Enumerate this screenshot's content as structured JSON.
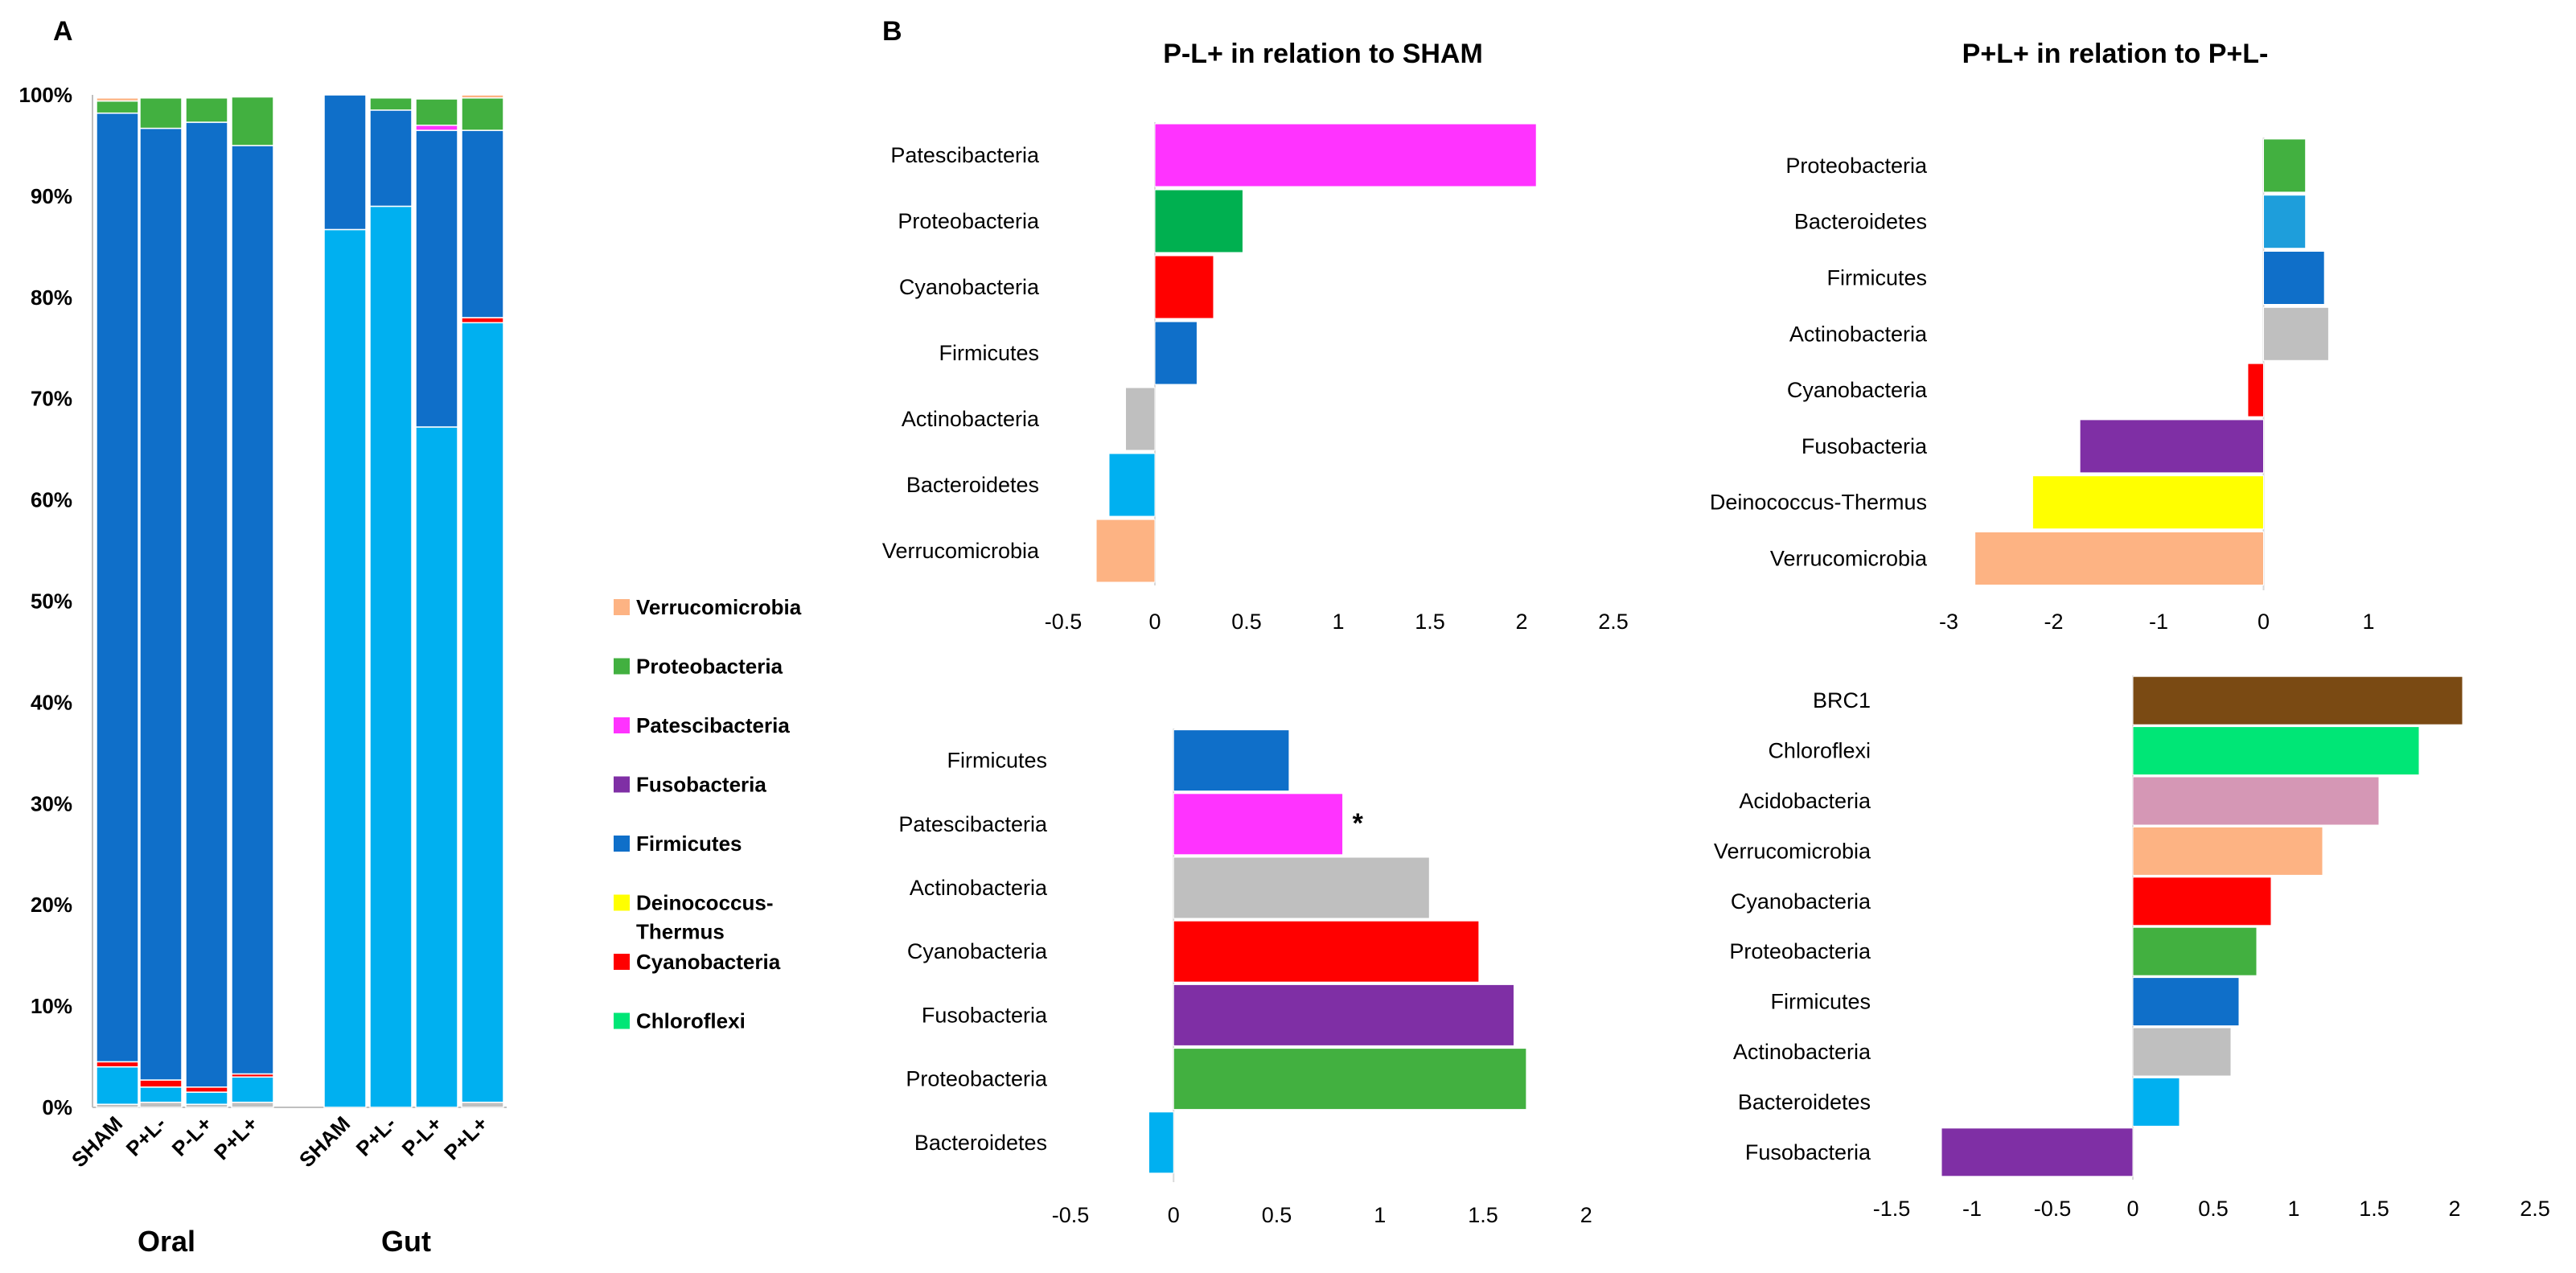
{
  "panel_labels": {
    "a": "A",
    "b": "B"
  },
  "group_labels": [
    "Oral",
    "Gut"
  ],
  "colors": {
    "Verrucomicrobia": "#FDB383",
    "Proteobacteria": "#42B040",
    "Patescibacteria": "#FF33FF",
    "Fusobacteria": "#7F2FA5",
    "Firmicutes": "#0F6FC9",
    "Deinococcus-Thermus": "#FFFF00",
    "Cyanobacteria": "#FF0000",
    "Chloroflexi": "#00E676",
    "Bacteroidetes": "#00B0F0",
    "Actinobacteria": "#BFBFBF",
    "BRC1": "#7A4A13",
    "Acidobacteria": "#D597B5",
    "ProteobacteriaDark": "#00B050",
    "BacteroidetesAlt": "#1E9EDB"
  },
  "legend": [
    {
      "label": "Verrucomicrobia",
      "color": "#FDB383"
    },
    {
      "label": "Proteobacteria",
      "color": "#42B040"
    },
    {
      "label": "Patescibacteria",
      "color": "#FF33FF"
    },
    {
      "label": "Fusobacteria",
      "color": "#7F2FA5"
    },
    {
      "label": "Firmicutes",
      "color": "#0F6FC9"
    },
    {
      "label": "Deinococcus-\nThermus",
      "color": "#FFFF00"
    },
    {
      "label": "Cyanobacteria",
      "color": "#FF0000"
    },
    {
      "label": "Chloroflexi",
      "color": "#00E676"
    }
  ],
  "chart_data": [
    {
      "id": "A",
      "type": "bar",
      "stacked": true,
      "title": "",
      "ylabel": "",
      "ylim": [
        0,
        100
      ],
      "yticks": [
        "0%",
        "10%",
        "20%",
        "30%",
        "40%",
        "50%",
        "60%",
        "70%",
        "80%",
        "90%",
        "100%"
      ],
      "categories": [
        "SHAM",
        "P+L-",
        "P-L+",
        "P+L+",
        "SHAM",
        "P+L-",
        "P-L+",
        "P+L+"
      ],
      "groups": [
        {
          "name": "Oral",
          "indices": [
            0,
            1,
            2,
            3
          ]
        },
        {
          "name": "Gut",
          "indices": [
            4,
            5,
            6,
            7
          ]
        }
      ],
      "series": [
        {
          "name": "Actinobacteria",
          "color": "#BFBFBF",
          "values": [
            0.3,
            0.5,
            0.3,
            0.5,
            0,
            0,
            0,
            0.5
          ]
        },
        {
          "name": "Bacteroidetes",
          "color": "#00B0F0",
          "values": [
            3.7,
            1.5,
            1.2,
            2.5,
            86.7,
            89,
            67.2,
            77
          ]
        },
        {
          "name": "Cyanobacteria",
          "color": "#FF0000",
          "values": [
            0.5,
            0.7,
            0.5,
            0.3,
            0,
            0,
            0,
            0.5
          ]
        },
        {
          "name": "Firmicutes",
          "color": "#0F6FC9",
          "values": [
            93.7,
            94,
            95.3,
            91.7,
            13.3,
            9.5,
            29.3,
            18.5
          ]
        },
        {
          "name": "Patescibacteria",
          "color": "#FF33FF",
          "values": [
            0,
            0,
            0,
            0,
            0,
            0,
            0.5,
            0
          ]
        },
        {
          "name": "Proteobacteria",
          "color": "#42B040",
          "values": [
            1.2,
            3,
            2.4,
            4.8,
            0,
            1.2,
            2.6,
            3.2
          ]
        },
        {
          "name": "Verrucomicrobia",
          "color": "#FDB383",
          "values": [
            0.3,
            0,
            0,
            0,
            0,
            0,
            0,
            0.3
          ]
        }
      ]
    },
    {
      "id": "B1",
      "type": "bar",
      "orientation": "horizontal",
      "title": "P-L+ in relation to SHAM",
      "categories": [
        "Patescibacteria",
        "Proteobacteria",
        "Cyanobacteria",
        "Firmicutes",
        "Actinobacteria",
        "Bacteroidetes",
        "Verrucomicrobia"
      ],
      "values": [
        2.08,
        0.48,
        0.32,
        0.23,
        -0.16,
        -0.25,
        -0.32
      ],
      "colors": [
        "#FF33FF",
        "#00B050",
        "#FF0000",
        "#0F6FC9",
        "#BFBFBF",
        "#00B0F0",
        "#FDB383"
      ],
      "xlim": [
        -0.5,
        2.5
      ],
      "xticks": [
        "-0.5",
        "0",
        "0.5",
        "1",
        "1.5",
        "2",
        "2.5"
      ],
      "xtick_values": [
        -0.5,
        0,
        0.5,
        1,
        1.5,
        2,
        2.5
      ]
    },
    {
      "id": "B2",
      "type": "bar",
      "orientation": "horizontal",
      "title": "P+L+ in relation to P+L-",
      "categories": [
        "Proteobacteria",
        "Bacteroidetes",
        "Firmicutes",
        "Actinobacteria",
        "Cyanobacteria",
        "Fusobacteria",
        "Deinococcus-Thermus",
        "Verrucomicrobia"
      ],
      "values": [
        0.4,
        0.4,
        0.58,
        0.62,
        -0.15,
        -1.75,
        -2.2,
        -2.75
      ],
      "colors": [
        "#42B040",
        "#1E9EDB",
        "#0F6FC9",
        "#BFBFBF",
        "#FF0000",
        "#7F2FA5",
        "#FFFF00",
        "#FDB383"
      ],
      "xlim": [
        -3,
        1.5
      ],
      "xticks": [
        "-3",
        "-2",
        "-1",
        "0",
        "1"
      ],
      "xtick_values": [
        -3,
        -2,
        -1,
        0,
        1
      ]
    },
    {
      "id": "B3",
      "type": "bar",
      "orientation": "horizontal",
      "title": "",
      "categories": [
        "Firmicutes",
        "Patescibacteria",
        "Actinobacteria",
        "Cyanobacteria",
        "Fusobacteria",
        "Proteobacteria",
        "Bacteroidetes"
      ],
      "values": [
        0.56,
        0.82,
        1.24,
        1.48,
        1.65,
        1.71,
        -0.12
      ],
      "colors": [
        "#0F6FC9",
        "#FF33FF",
        "#BFBFBF",
        "#FF0000",
        "#7F2FA5",
        "#42B040",
        "#00B0F0"
      ],
      "annotation": {
        "category": "Patescibacteria",
        "text": "*"
      },
      "xlim": [
        -0.5,
        2
      ],
      "xticks": [
        "-0.5",
        "0",
        "0.5",
        "1",
        "1.5",
        "2"
      ],
      "xtick_values": [
        -0.5,
        0,
        0.5,
        1,
        1.5,
        2
      ]
    },
    {
      "id": "B4",
      "type": "bar",
      "orientation": "horizontal",
      "title": "",
      "categories": [
        "BRC1",
        "Chloroflexi",
        "Acidobacteria",
        "Verrucomicrobia",
        "Cyanobacteria",
        "Proteobacteria",
        "Firmicutes",
        "Actinobacteria",
        "Bacteroidetes",
        "Fusobacteria"
      ],
      "values": [
        2.05,
        1.78,
        1.53,
        1.18,
        0.86,
        0.77,
        0.66,
        0.61,
        0.29,
        -1.19
      ],
      "colors": [
        "#7A4A13",
        "#00E676",
        "#D597B5",
        "#FDB383",
        "#FF0000",
        "#42B040",
        "#0F6FC9",
        "#BFBFBF",
        "#00B0F0",
        "#7F2FA5"
      ],
      "xlim": [
        -1.5,
        2.5
      ],
      "xticks": [
        "-1.5",
        "-1",
        "-0.5",
        "0",
        "0.5",
        "1",
        "1.5",
        "2",
        "2.5"
      ],
      "xtick_values": [
        -1.5,
        -1,
        -0.5,
        0,
        0.5,
        1,
        1.5,
        2,
        2.5
      ]
    }
  ]
}
